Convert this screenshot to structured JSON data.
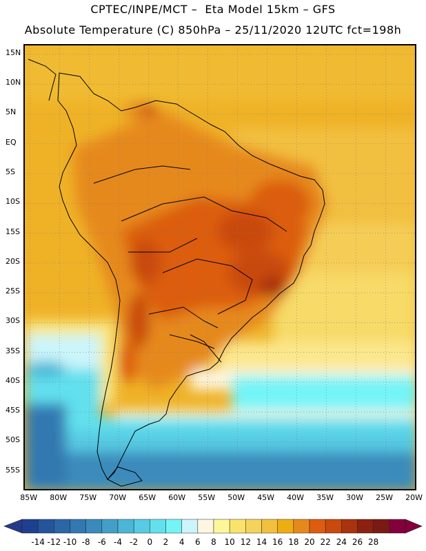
{
  "header": {
    "line1": "CPTEC/INPE/MCT –  Eta Model 15km – GFS",
    "line2": "Absolute Temperature (C) 850hPa – 25/11/2020 12UTC fct=198h"
  },
  "map": {
    "region": "South America",
    "lat_ticks": [
      "15N",
      "10N",
      "5N",
      "EQ",
      "5S",
      "10S",
      "15S",
      "20S",
      "25S",
      "30S",
      "35S",
      "40S",
      "45S",
      "50S",
      "55S"
    ],
    "lat_values": [
      15,
      10,
      5,
      0,
      -5,
      -10,
      -15,
      -20,
      -25,
      -30,
      -35,
      -40,
      -45,
      -50,
      -55
    ],
    "lon_ticks": [
      "85W",
      "80W",
      "75W",
      "70W",
      "65W",
      "60W",
      "55W",
      "50W",
      "45W",
      "40W",
      "35W",
      "30W",
      "25W",
      "20W"
    ],
    "lon_values": [
      -85,
      -80,
      -75,
      -70,
      -65,
      -60,
      -55,
      -50,
      -45,
      -40,
      -35,
      -30,
      -25,
      -20
    ],
    "lat_range": [
      -58.4,
      16.5
    ],
    "lon_range": [
      -85.9,
      -19.6
    ],
    "grid": "dotted",
    "variable": "Absolute Temperature (C) 850hPa"
  },
  "colorbar": {
    "labels": [
      "-14",
      "-12",
      "-10",
      "-8",
      "-6",
      "-4",
      "-2",
      "0",
      "2",
      "4",
      "6",
      "8",
      "10",
      "12",
      "14",
      "16",
      "18",
      "20",
      "22",
      "24",
      "26",
      "28"
    ],
    "colors": [
      "#1f3f8f",
      "#25549a",
      "#2b66a6",
      "#3278b1",
      "#3a8bbc",
      "#42a0c8",
      "#4cb6d6",
      "#56cbe3",
      "#62e0ee",
      "#74f4f7",
      "#cbf5fb",
      "#fdf6e0",
      "#fdf79a",
      "#f8e46a",
      "#f4d35a",
      "#f1c13d",
      "#eeae12",
      "#e6891a",
      "#dc5d10",
      "#c94a0c",
      "#a8330c",
      "#8a2111",
      "#7a1a14",
      "#84003c"
    ],
    "min_arrow_color": "#243a8a",
    "max_arrow_color": "#84003c"
  }
}
